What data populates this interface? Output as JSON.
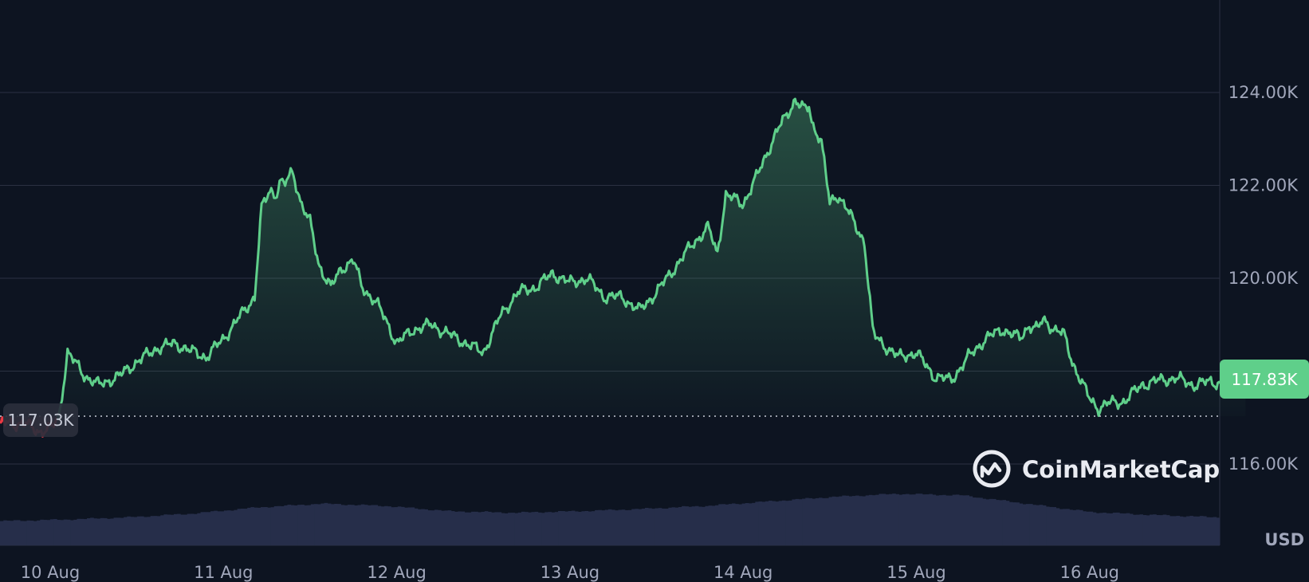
{
  "chart_data": {
    "type": "line",
    "currency_unit": "USD",
    "x_tick_labels": [
      "10 Aug",
      "11 Aug",
      "12 Aug",
      "13 Aug",
      "14 Aug",
      "15 Aug",
      "16 Aug"
    ],
    "y_tick_labels": [
      "116.00K",
      "118.00K",
      "120.00K",
      "122.00K",
      "124.00K"
    ],
    "y_tick_values": [
      116000,
      118000,
      120000,
      122000,
      124000
    ],
    "ylim": [
      114200,
      125800
    ],
    "x_range_days": [
      9.7,
      16.9
    ],
    "grid": true,
    "open_price": 117030,
    "open_price_label": "117.03K",
    "current_price": 117830,
    "current_price_label": "117.83K",
    "series": [
      {
        "values_x_days": [
          9.7,
          9.86,
          9.94,
          10.0,
          10.05,
          10.1,
          10.2,
          10.28,
          10.4,
          10.5,
          10.62,
          10.72,
          10.8,
          10.9,
          11.0,
          11.1,
          11.18,
          11.22,
          11.27,
          11.3,
          11.33,
          11.35,
          11.4,
          11.45,
          11.5,
          11.55,
          11.62,
          11.68,
          11.75,
          11.8,
          11.88,
          11.95,
          12.0,
          12.1,
          12.2,
          12.3,
          12.4,
          12.5,
          12.6,
          12.7,
          12.8,
          12.9,
          13.0,
          13.1,
          13.2,
          13.3,
          13.4,
          13.5,
          13.6,
          13.7,
          13.8,
          13.85,
          13.9,
          14.0,
          14.08,
          14.15,
          14.2,
          14.25,
          14.3,
          14.36,
          14.38,
          14.4,
          14.45,
          14.5,
          14.55,
          14.6,
          14.65,
          14.7,
          14.75,
          14.8,
          14.9,
          15.0,
          15.1,
          15.2,
          15.3,
          15.4,
          15.5,
          15.6,
          15.65,
          15.7,
          15.73,
          15.8,
          15.85,
          15.9,
          16.0,
          16.05,
          16.1,
          16.2,
          16.3,
          16.4,
          16.5,
          16.6,
          16.7,
          16.8,
          16.9
        ],
        "values_y": [
          116900,
          116850,
          116700,
          116750,
          117000,
          118400,
          117900,
          117700,
          117900,
          118200,
          118500,
          118600,
          118450,
          118300,
          118700,
          119200,
          119600,
          121500,
          121900,
          121800,
          122100,
          122000,
          122300,
          121600,
          121200,
          120300,
          119800,
          120200,
          120400,
          119800,
          119500,
          119000,
          118600,
          118900,
          119000,
          118800,
          118600,
          118400,
          119200,
          119700,
          119800,
          120100,
          119900,
          120000,
          119600,
          119600,
          119300,
          119700,
          120200,
          120700,
          121100,
          120500,
          121800,
          121600,
          122200,
          122800,
          123200,
          123500,
          123850,
          123600,
          123700,
          123300,
          123000,
          121600,
          121800,
          121500,
          121100,
          120800,
          118800,
          118600,
          118300,
          118400,
          117900,
          117800,
          118300,
          118700,
          118900,
          118700,
          119000,
          118900,
          119100,
          118900,
          118800,
          118200,
          117400,
          117200,
          117300,
          117350,
          117700,
          117800,
          117850,
          117700,
          117780,
          117700,
          117830
        ]
      }
    ],
    "volume_baseline_note": "",
    "volume_levels": [
      0.32,
      0.34,
      0.37,
      0.42,
      0.5,
      0.55,
      0.52,
      0.45,
      0.43,
      0.45,
      0.48,
      0.52,
      0.58,
      0.64,
      0.68,
      0.66,
      0.55,
      0.44,
      0.4,
      0.37
    ],
    "colors": {
      "background": "#0d1421",
      "up_line": "#5fcf8a",
      "down_line": "#ea3943",
      "grid": "#2b3142",
      "volume": "#262e4a",
      "tick_text": "#a1a7bb",
      "current_badge": "#5fcf8a",
      "open_badge": "#2a2f3c"
    }
  },
  "watermark": {
    "brand_name": "CoinMarketCap",
    "icon": "coinmarketcap-logo-icon"
  }
}
